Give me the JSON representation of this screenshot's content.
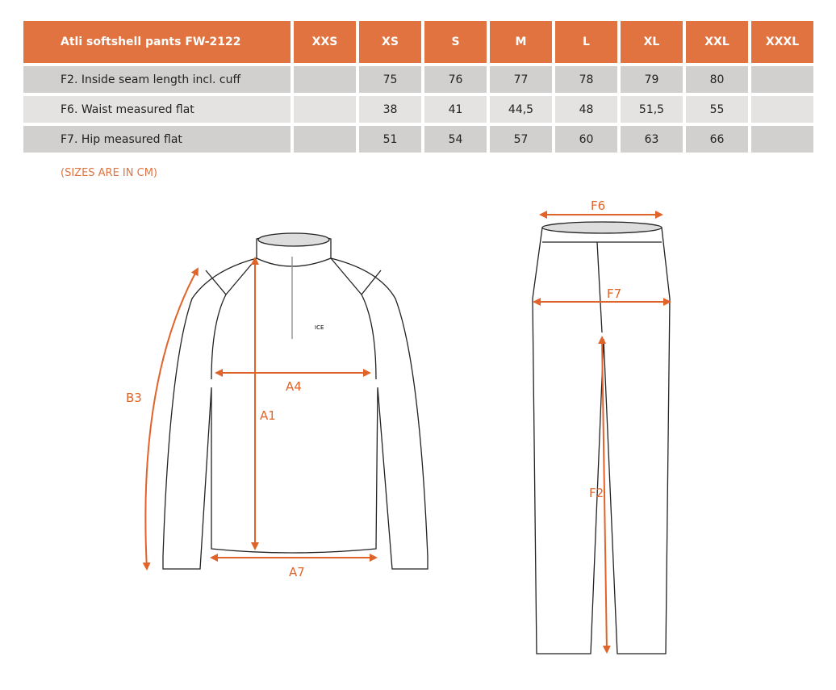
{
  "table": {
    "title": "Atli softshell pants FW-2122",
    "sizes": [
      "XXS",
      "XS",
      "S",
      "M",
      "L",
      "XL",
      "XXL",
      "XXXL"
    ],
    "rows": [
      {
        "label": "F2. Inside seam length incl. cuff",
        "values": [
          "",
          "75",
          "76",
          "77",
          "78",
          "79",
          "80",
          ""
        ]
      },
      {
        "label": "F6. Waist measured flat",
        "values": [
          "",
          "38",
          "41",
          "44,5",
          "48",
          "51,5",
          "55",
          ""
        ]
      },
      {
        "label": "F7. Hip measured flat",
        "values": [
          "",
          "51",
          "54",
          "57",
          "60",
          "63",
          "66",
          ""
        ]
      }
    ]
  },
  "note": "(SIZES ARE IN CM)",
  "diagram": {
    "accent": "#e0642a",
    "jacket_labels": {
      "b3": "B3",
      "a4": "A4",
      "a1": "A1",
      "a7": "A7"
    },
    "pants_labels": {
      "f6": "F6",
      "f7": "F7",
      "f2": "F2"
    },
    "logo": "ICE WEAR"
  }
}
